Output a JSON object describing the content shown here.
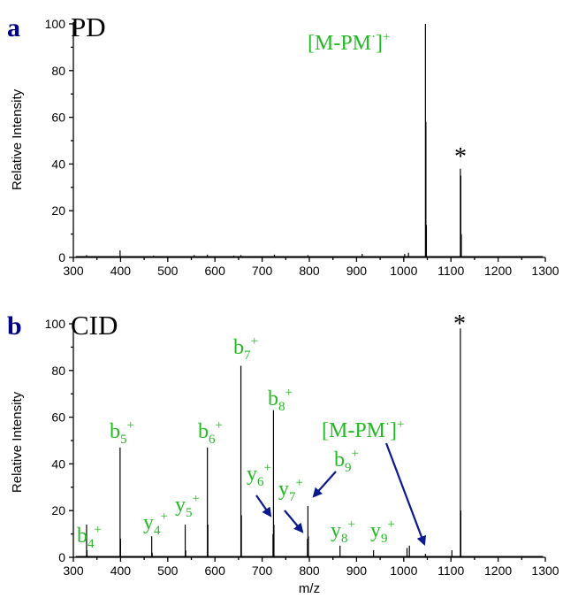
{
  "colors": {
    "label_green": "#22bb22",
    "arrow_blue": "#0a1a8c",
    "panel_letter": "#00008b"
  },
  "chart_data": [
    {
      "type": "bar",
      "panel_letter": "a",
      "title": "PD",
      "xlabel": "",
      "ylabel": "Relative Intensity",
      "xlim": [
        300,
        1300
      ],
      "ylim": [
        0,
        100
      ],
      "xticks": [
        300,
        400,
        500,
        600,
        700,
        800,
        900,
        1000,
        1100,
        1200,
        1300
      ],
      "yticks": [
        0,
        20,
        40,
        60,
        80,
        100
      ],
      "peaks": [
        {
          "mz": 328,
          "intensity": 1
        },
        {
          "mz": 399,
          "intensity": 3
        },
        {
          "mz": 470,
          "intensity": 0.8
        },
        {
          "mz": 556,
          "intensity": 1
        },
        {
          "mz": 584,
          "intensity": 1.2
        },
        {
          "mz": 640,
          "intensity": 0.8
        },
        {
          "mz": 655,
          "intensity": 1
        },
        {
          "mz": 726,
          "intensity": 1.2
        },
        {
          "mz": 797,
          "intensity": 1
        },
        {
          "mz": 912,
          "intensity": 1.5
        },
        {
          "mz": 1002,
          "intensity": 1.5
        },
        {
          "mz": 1010,
          "intensity": 2
        },
        {
          "mz": 1046,
          "intensity": 100
        },
        {
          "mz": 1047,
          "intensity": 58
        },
        {
          "mz": 1048,
          "intensity": 14
        },
        {
          "mz": 1120,
          "intensity": 38
        },
        {
          "mz": 1121,
          "intensity": 35
        },
        {
          "mz": 1122,
          "intensity": 10
        }
      ],
      "annotations": [
        {
          "text": "[M-PM",
          "dot": "·",
          "close": "]",
          "sup": "+",
          "mz": 1046,
          "intensity": 100
        },
        {
          "text": "*",
          "mz": 1120,
          "intensity": 38
        }
      ]
    },
    {
      "type": "bar",
      "panel_letter": "b",
      "title": "CID",
      "xlabel": "m/z",
      "ylabel": "Relative Intensity",
      "xlim": [
        300,
        1300
      ],
      "ylim": [
        0,
        100
      ],
      "xticks": [
        300,
        400,
        500,
        600,
        700,
        800,
        900,
        1000,
        1100,
        1200,
        1300
      ],
      "yticks": [
        0,
        20,
        40,
        60,
        80,
        100
      ],
      "peaks": [
        {
          "mz": 328,
          "intensity": 14
        },
        {
          "mz": 329,
          "intensity": 3
        },
        {
          "mz": 399,
          "intensity": 47
        },
        {
          "mz": 400,
          "intensity": 8
        },
        {
          "mz": 466,
          "intensity": 9
        },
        {
          "mz": 467,
          "intensity": 2
        },
        {
          "mz": 537,
          "intensity": 14
        },
        {
          "mz": 538,
          "intensity": 3
        },
        {
          "mz": 584,
          "intensity": 47
        },
        {
          "mz": 585,
          "intensity": 14
        },
        {
          "mz": 655,
          "intensity": 82
        },
        {
          "mz": 656,
          "intensity": 18
        },
        {
          "mz": 723,
          "intensity": 10
        },
        {
          "mz": 724,
          "intensity": 63
        },
        {
          "mz": 725,
          "intensity": 14
        },
        {
          "mz": 796,
          "intensity": 8
        },
        {
          "mz": 797,
          "intensity": 22
        },
        {
          "mz": 798,
          "intensity": 9
        },
        {
          "mz": 865,
          "intensity": 5
        },
        {
          "mz": 936,
          "intensity": 3
        },
        {
          "mz": 1007,
          "intensity": 4
        },
        {
          "mz": 1012,
          "intensity": 5
        },
        {
          "mz": 1046,
          "intensity": 1.5
        },
        {
          "mz": 1102,
          "intensity": 3
        },
        {
          "mz": 1120,
          "intensity": 98
        },
        {
          "mz": 1121,
          "intensity": 20
        }
      ],
      "annotations": [
        {
          "ion": "b",
          "sub": "4",
          "sup": "+",
          "mz": 328,
          "intensity": 14
        },
        {
          "ion": "b",
          "sub": "5",
          "sup": "+",
          "mz": 399,
          "intensity": 47
        },
        {
          "ion": "y",
          "sub": "4",
          "sup": "+",
          "mz": 466,
          "intensity": 9
        },
        {
          "ion": "y",
          "sub": "5",
          "sup": "+",
          "mz": 537,
          "intensity": 14
        },
        {
          "ion": "b",
          "sub": "6",
          "sup": "+",
          "mz": 584,
          "intensity": 47
        },
        {
          "ion": "b",
          "sub": "7",
          "sup": "+",
          "mz": 655,
          "intensity": 82
        },
        {
          "ion": "b",
          "sub": "8",
          "sup": "+",
          "mz": 724,
          "intensity": 63
        },
        {
          "ion": "y",
          "sub": "6",
          "sup": "+",
          "mz": 724,
          "intensity": 14
        },
        {
          "ion": "y",
          "sub": "7",
          "sup": "+",
          "mz": 797,
          "intensity": 9
        },
        {
          "ion": "b",
          "sub": "9",
          "sup": "+",
          "mz": 797,
          "intensity": 22
        },
        {
          "ion": "y",
          "sub": "8",
          "sup": "+",
          "mz": 865,
          "intensity": 5
        },
        {
          "ion": "y",
          "sub": "9",
          "sup": "+",
          "mz": 936,
          "intensity": 3
        },
        {
          "text": "[M-PM",
          "dot": "·",
          "close": "]",
          "sup": "+",
          "mz": 1046,
          "intensity": 1.5
        },
        {
          "text": "*",
          "mz": 1120,
          "intensity": 98
        }
      ]
    }
  ]
}
